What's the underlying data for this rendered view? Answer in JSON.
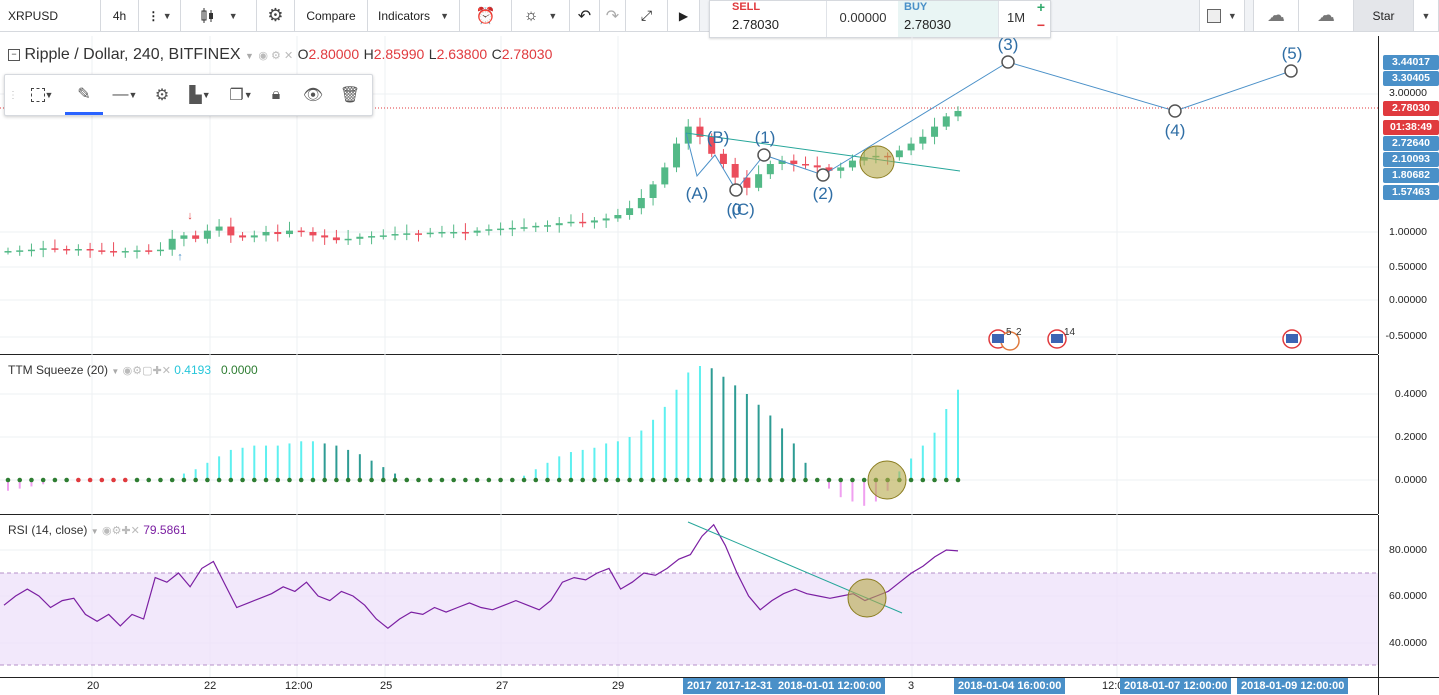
{
  "toolbar": {
    "symbol": "XRPUSD",
    "interval": "4h",
    "compare": "Compare",
    "indicators": "Indicators",
    "sell_label": "SELL",
    "sell_price": "2.78030",
    "spread": "0.00000",
    "buy_label": "BUY",
    "buy_price": "2.78030",
    "range": "1M",
    "plus": "+",
    "minus": "−",
    "star": "Star"
  },
  "legend": {
    "title": "Ripple / Dollar, 240, BITFINEX",
    "o_label": "O",
    "o": "2.80000",
    "h_label": "H",
    "h": "2.85990",
    "l_label": "L",
    "l": "2.63800",
    "c_label": "C",
    "c": "2.78030"
  },
  "ttm": {
    "title": "TTM Squeeze (20)",
    "v1": "0.4193",
    "v2": "0.0000"
  },
  "rsi": {
    "title": "RSI (14, close)",
    "value": "79.5861"
  },
  "price_scale": {
    "ticks": [
      "3.00000",
      "1.00000",
      "0.50000",
      "0.00000",
      "-0.50000"
    ],
    "labels": [
      {
        "text": "3.44017",
        "color": "#4a90c8"
      },
      {
        "text": "3.30405",
        "color": "#4a90c8"
      },
      {
        "text": "2.78030",
        "color": "#e03a3e"
      },
      {
        "text": "01:38:49",
        "color": "#e03a3e"
      },
      {
        "text": "2.72640",
        "color": "#4a90c8"
      },
      {
        "text": "2.10093",
        "color": "#4a90c8"
      },
      {
        "text": "1.80682",
        "color": "#4a90c8"
      },
      {
        "text": "1.57463",
        "color": "#4a90c8"
      }
    ]
  },
  "ttm_scale": {
    "ticks": [
      "0.4000",
      "0.2000",
      "0.0000"
    ]
  },
  "rsi_scale": {
    "ticks": [
      "80.0000",
      "60.0000",
      "40.0000"
    ]
  },
  "time_axis": {
    "labels": [
      "20",
      "22",
      "12:00",
      "25",
      "27",
      "29",
      "3",
      "12:0"
    ],
    "highlights": [
      "2017",
      "2017-12-31",
      "2018-01-01 12:00:00",
      "2018-01-04 16:00:00",
      "2018-01-07 12:00:00",
      "2018-01-09 12:00:00"
    ]
  },
  "wave_labels": {
    "a": "(A)",
    "b": "(B)",
    "c": "(C)",
    "c_over": "(0",
    "w1": "(1)",
    "w2": "(2)",
    "w3": "(3)",
    "w4": "(4)",
    "w5": "(5)"
  },
  "events": {
    "e1": "5",
    "e2": "2",
    "e3": "14"
  },
  "colors": {
    "up": "#53b987",
    "down": "#eb4d5c",
    "accent": "#4a90c8",
    "rsi": "#7b1fa2",
    "ttm_up": "#5ef0f0",
    "ttm_dn": "#f0a0f0"
  }
}
